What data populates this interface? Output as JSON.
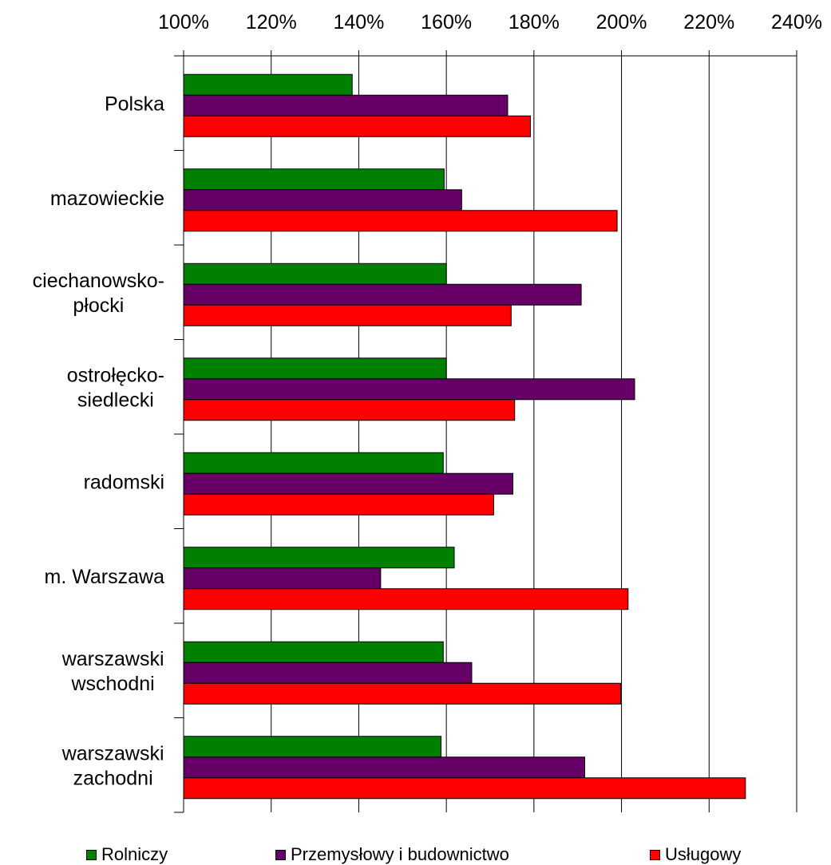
{
  "chart_data": {
    "type": "bar",
    "orientation": "horizontal",
    "categories": [
      [
        "Polska"
      ],
      [
        "mazowieckie"
      ],
      [
        "ciechanowsko-",
        "płocki"
      ],
      [
        "ostrołęcko-",
        "siedlecki"
      ],
      [
        "radomski"
      ],
      [
        "m. Warszawa"
      ],
      [
        "warszawski",
        "wschodni"
      ],
      [
        "warszawski",
        "zachodni"
      ]
    ],
    "series": [
      {
        "name": "Rolniczy",
        "color": "#008000",
        "values": [
          138.5,
          159.5,
          160,
          160,
          159.3,
          161.8,
          159.3,
          158.8
        ]
      },
      {
        "name": "Przemysłowy i budownictwo",
        "color": "#660066",
        "values": [
          174,
          163.5,
          190.8,
          203,
          175.2,
          145,
          165.8,
          191.6
        ]
      },
      {
        "name": "Usługowy",
        "color": "#ff0000",
        "values": [
          179.2,
          199,
          174.8,
          175.6,
          170.8,
          201.5,
          199.8,
          228.3
        ]
      }
    ],
    "xlim": [
      100,
      240
    ],
    "xticks": [
      "100%",
      "120%",
      "140%",
      "160%",
      "180%",
      "200%",
      "220%",
      "240%"
    ],
    "xtick_values": [
      100,
      120,
      140,
      160,
      180,
      200,
      220,
      240
    ],
    "x_axis_position": "top",
    "grid": true,
    "legend_position": "bottom"
  }
}
